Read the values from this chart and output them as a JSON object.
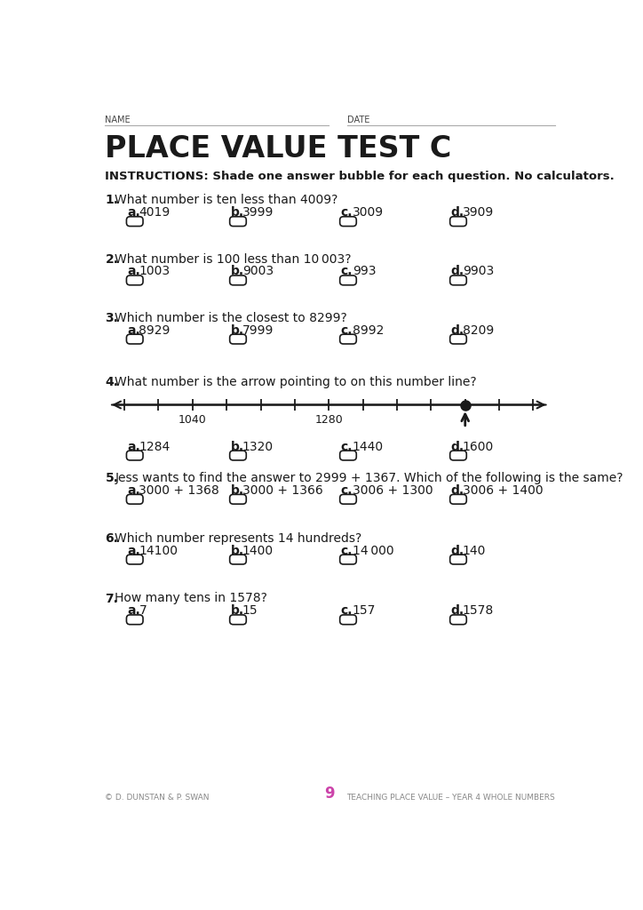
{
  "bg_color": "#ffffff",
  "text_color": "#1a1a1a",
  "title": "PLACE VALUE TEST C",
  "name_label": "NAME",
  "date_label": "DATE",
  "instructions": "INSTRUCTIONS: Shade one answer bubble for each question. No calculators.",
  "questions": [
    {
      "num": "1.",
      "text": "What number is ten less than 4009?",
      "options": [
        {
          "letter": "a.",
          "value": "4019"
        },
        {
          "letter": "b.",
          "value": "3999"
        },
        {
          "letter": "c.",
          "value": "3009"
        },
        {
          "letter": "d.",
          "value": "3909"
        }
      ]
    },
    {
      "num": "2.",
      "text": "What number is 100 less than 10 003?",
      "options": [
        {
          "letter": "a.",
          "value": "1003"
        },
        {
          "letter": "b.",
          "value": "9003"
        },
        {
          "letter": "c.",
          "value": "993"
        },
        {
          "letter": "d.",
          "value": "9903"
        }
      ]
    },
    {
      "num": "3.",
      "text": "Which number is the closest to 8299?",
      "options": [
        {
          "letter": "a.",
          "value": "8929"
        },
        {
          "letter": "b.",
          "value": "7999"
        },
        {
          "letter": "c.",
          "value": "8992"
        },
        {
          "letter": "d.",
          "value": "8209"
        }
      ]
    },
    {
      "num": "4.",
      "text": "What number is the arrow pointing to on this number line?",
      "number_line": true,
      "nl_label1": "1040",
      "nl_label1_tick": 2,
      "nl_label2": "1280",
      "nl_label2_tick": 6,
      "nl_dot_tick": 10,
      "options": [
        {
          "letter": "a.",
          "value": "1284"
        },
        {
          "letter": "b.",
          "value": "1320"
        },
        {
          "letter": "c.",
          "value": "1440"
        },
        {
          "letter": "d.",
          "value": "1600"
        }
      ]
    },
    {
      "num": "5.",
      "text": "Jess wants to find the answer to 2999 + 1367. Which of the following is the same?",
      "options": [
        {
          "letter": "a.",
          "value": "3000 + 1368"
        },
        {
          "letter": "b.",
          "value": "3000 + 1366"
        },
        {
          "letter": "c.",
          "value": "3006 + 1300"
        },
        {
          "letter": "d.",
          "value": "3006 + 1400"
        }
      ]
    },
    {
      "num": "6.",
      "text": "Which number represents 14 hundreds?",
      "options": [
        {
          "letter": "a.",
          "value": "14100"
        },
        {
          "letter": "b.",
          "value": "1400"
        },
        {
          "letter": "c.",
          "value": "14 000"
        },
        {
          "letter": "d.",
          "value": "140"
        }
      ]
    },
    {
      "num": "7.",
      "text": "How many tens in 1578?",
      "options": [
        {
          "letter": "a.",
          "value": "7"
        },
        {
          "letter": "b.",
          "value": "15"
        },
        {
          "letter": "c.",
          "value": "157"
        },
        {
          "letter": "d.",
          "value": "1578"
        }
      ]
    }
  ],
  "footer_left": "© D. DUNSTAN & P. SWAN",
  "footer_center": "9",
  "footer_right": "TEACHING PLACE VALUE – YEAR 4 WHOLE NUMBERS"
}
